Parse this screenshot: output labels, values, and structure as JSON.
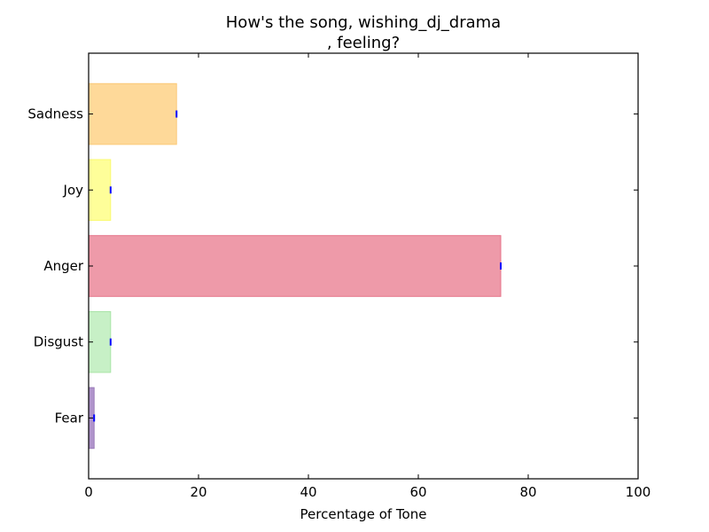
{
  "chart_data": {
    "type": "bar",
    "orientation": "horizontal",
    "title_line1": "How's the song, wishing_dj_drama",
    "title_line2": ", feeling?",
    "xlabel": "Percentage of Tone",
    "ylabel": "",
    "xlim": [
      0,
      100
    ],
    "xticks": [
      "0",
      "20",
      "40",
      "60",
      "80",
      "100"
    ],
    "grid": false,
    "categories": [
      "Fear",
      "Disgust",
      "Anger",
      "Joy",
      "Sadness"
    ],
    "values": [
      1,
      4,
      75,
      4,
      16
    ],
    "colors": [
      "#b195cc",
      "#c7f0c6",
      "#ee9aa9",
      "#fefe99",
      "#fed999"
    ],
    "edge_colors": [
      "#9a7ab8",
      "#a8e4a6",
      "#e57389",
      "#fafa70",
      "#fbc978"
    ],
    "error_marker_color": "#0000ff"
  }
}
